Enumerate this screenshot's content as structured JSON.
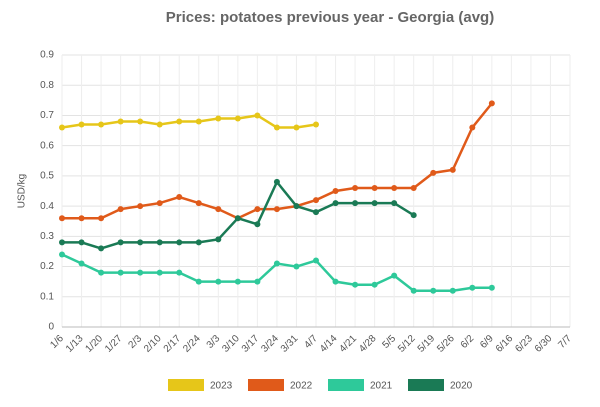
{
  "chart_data": {
    "type": "line",
    "title": "Prices: potatoes previous year - Georgia (avg)",
    "y_label": "USD/kg",
    "categories": [
      "1/6",
      "1/13",
      "1/20",
      "1/27",
      "2/3",
      "2/10",
      "2/17",
      "2/24",
      "3/3",
      "3/10",
      "3/17",
      "3/24",
      "3/31",
      "4/7",
      "4/14",
      "4/21",
      "4/28",
      "5/5",
      "5/12",
      "5/19",
      "5/26",
      "6/2",
      "6/9",
      "6/16",
      "6/23",
      "6/30",
      "7/7"
    ],
    "series": [
      {
        "name": "2023",
        "color": "#e6c619",
        "values": [
          0.66,
          0.67,
          0.67,
          0.68,
          0.68,
          0.67,
          0.68,
          0.68,
          0.69,
          0.69,
          0.7,
          0.66,
          0.66,
          0.67,
          null,
          null,
          null,
          null,
          null,
          null,
          null,
          null,
          null,
          null,
          null,
          null,
          null
        ]
      },
      {
        "name": "2022",
        "color": "#e05a1a",
        "values": [
          0.36,
          0.36,
          0.36,
          0.39,
          0.4,
          0.41,
          0.43,
          0.41,
          0.39,
          0.36,
          0.39,
          0.39,
          0.4,
          0.42,
          0.45,
          0.46,
          0.46,
          0.46,
          0.46,
          0.51,
          0.52,
          0.66,
          0.74,
          null,
          null,
          null,
          null
        ]
      },
      {
        "name": "2021",
        "color": "#2ec99a",
        "values": [
          0.24,
          0.21,
          0.18,
          0.18,
          0.18,
          0.18,
          0.18,
          0.15,
          0.15,
          0.15,
          0.15,
          0.21,
          0.2,
          0.22,
          0.15,
          0.14,
          0.14,
          0.17,
          0.12,
          0.12,
          0.12,
          0.13,
          0.13,
          null,
          null,
          null,
          null
        ]
      },
      {
        "name": "2020",
        "color": "#1a7a55",
        "values": [
          0.28,
          0.28,
          0.26,
          0.28,
          0.28,
          0.28,
          0.28,
          0.28,
          0.29,
          0.36,
          0.34,
          0.48,
          0.4,
          0.38,
          0.41,
          0.41,
          0.41,
          0.41,
          0.37,
          null,
          null,
          null,
          null,
          null,
          null,
          null,
          null
        ]
      }
    ],
    "ylim": [
      0,
      0.9
    ],
    "yticks": [
      0,
      0.1,
      0.2,
      0.3,
      0.4,
      0.5,
      0.6,
      0.7,
      0.8,
      0.9
    ],
    "grid": true
  }
}
